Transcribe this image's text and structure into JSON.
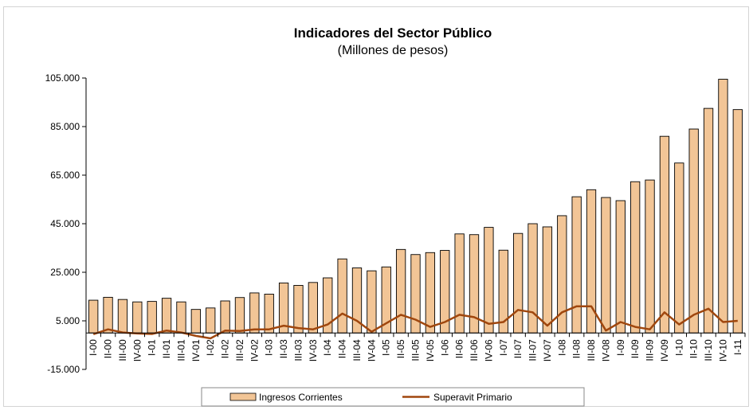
{
  "chart_data": {
    "type": "bar",
    "title": "Indicadores del Sector Público",
    "subtitle": "(Millones de pesos)",
    "xlabel": "",
    "ylabel": "",
    "ylim": [
      -15000,
      105000
    ],
    "y_ticks": [
      "105.000",
      "85.000",
      "65.000",
      "45.000",
      "25.000",
      "5.000",
      "-15.000"
    ],
    "y_tick_values": [
      105000,
      85000,
      65000,
      45000,
      25000,
      5000,
      -15000
    ],
    "grid": false,
    "legend_position": "bottom",
    "categories": [
      "I-00",
      "II-00",
      "III-00",
      "IV-00",
      "I-01",
      "II-01",
      "III-01",
      "IV-01",
      "I-02",
      "II-02",
      "III-02",
      "IV-02",
      "I-03",
      "II-03",
      "III-03",
      "IV-03",
      "I-04",
      "II-04",
      "III-04",
      "IV-04",
      "I-05",
      "II-05",
      "III-05",
      "IV-05",
      "I-06",
      "II-06",
      "III-06",
      "IV-06",
      "I-07",
      "II-07",
      "III-07",
      "IV-07",
      "I-08",
      "II-08",
      "III-08",
      "IV-08",
      "I-09",
      "II-09",
      "III-09",
      "IV-09",
      "I-10",
      "II-10",
      "III-10",
      "IV-10",
      "I-11"
    ],
    "series": [
      {
        "name": "Ingresos Corrientes",
        "kind": "bar",
        "color": "#f2c596",
        "values": [
          13500,
          14700,
          13800,
          12800,
          13000,
          14300,
          12800,
          9700,
          10300,
          13200,
          14600,
          16500,
          16000,
          20600,
          19600,
          20800,
          22700,
          30500,
          26800,
          25600,
          27200,
          34400,
          32300,
          33100,
          34000,
          40800,
          40500,
          43500,
          34100,
          41000,
          45000,
          43700,
          48300,
          56100,
          59000,
          55800,
          54500,
          62300,
          63000,
          81000,
          70000,
          84000,
          92500,
          104500,
          92000
        ]
      },
      {
        "name": "Superavit Primario",
        "kind": "line",
        "color": "#a0470e",
        "values": [
          -500,
          1500,
          200,
          -200,
          -400,
          1000,
          200,
          -1200,
          -2200,
          1000,
          800,
          1500,
          1500,
          3000,
          2000,
          1500,
          3500,
          8000,
          5000,
          500,
          4000,
          7500,
          5500,
          2500,
          4500,
          7500,
          6500,
          3800,
          4500,
          9500,
          8500,
          3000,
          8500,
          11000,
          11000,
          1000,
          4500,
          2500,
          1500,
          8500,
          3500,
          7500,
          10000,
          4500,
          5000
        ]
      }
    ]
  }
}
